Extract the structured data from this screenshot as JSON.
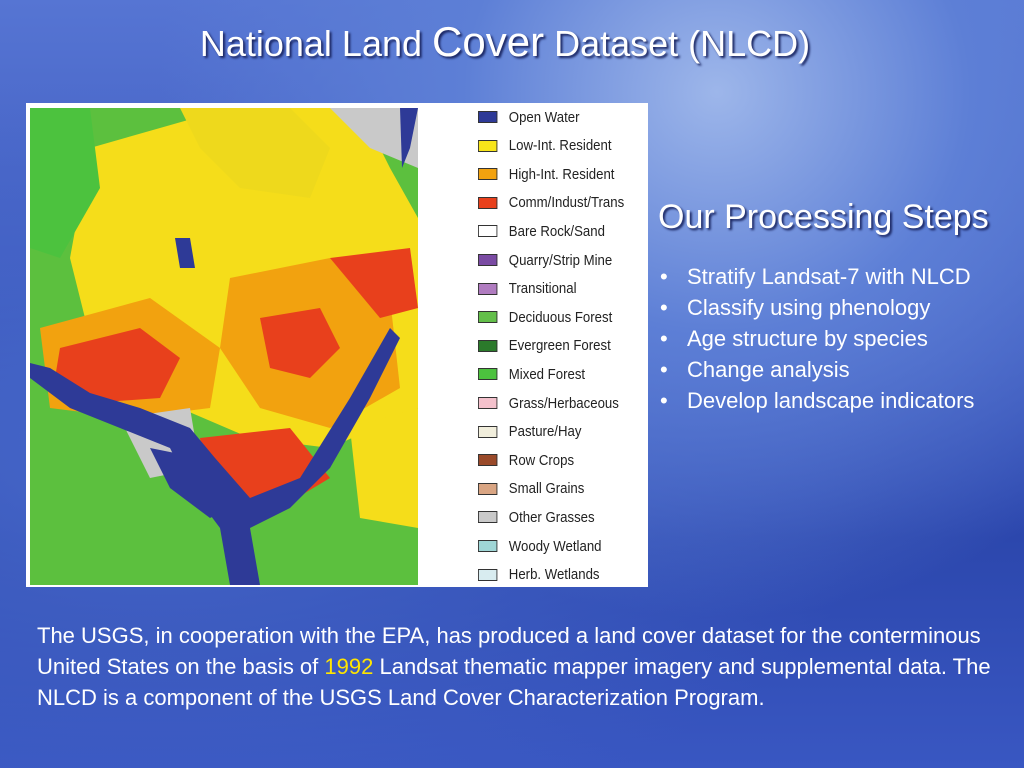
{
  "header": {
    "title_before": "National Land",
    "title_emphasis": "Cover",
    "title_after": "Dataset (NLCD)"
  },
  "legend": {
    "items": [
      {
        "label": "Open Water",
        "color": "#2e3a97"
      },
      {
        "label": "Low-Int. Resident",
        "color": "#f7e51a"
      },
      {
        "label": "High-Int. Resident",
        "color": "#f2a20f"
      },
      {
        "label": "Comm/Indust/Trans",
        "color": "#e8401c"
      },
      {
        "label": "Bare Rock/Sand",
        "color": "#ffffff"
      },
      {
        "label": "Quarry/Strip Mine",
        "color": "#7a4ba3"
      },
      {
        "label": "Transitional",
        "color": "#b07cc0"
      },
      {
        "label": "Deciduous Forest",
        "color": "#63bf4a"
      },
      {
        "label": "Evergreen Forest",
        "color": "#2b7a2b"
      },
      {
        "label": "Mixed Forest",
        "color": "#4cc23e"
      },
      {
        "label": "Grass/Herbaceous",
        "color": "#f4c1cc"
      },
      {
        "label": "Pasture/Hay",
        "color": "#f1eedc"
      },
      {
        "label": "Row Crops",
        "color": "#9a4a2a"
      },
      {
        "label": "Small Grains",
        "color": "#d9a583"
      },
      {
        "label": "Other Grasses",
        "color": "#c9c9c9"
      },
      {
        "label": "Woody Wetland",
        "color": "#9fd6d6"
      },
      {
        "label": "Herb. Wetlands",
        "color": "#d8ecf0"
      }
    ]
  },
  "steps": {
    "heading": "Our Processing Steps",
    "bullets": [
      "Stratify Landsat-7 with NLCD",
      "Classify using phenology",
      "Age structure by species",
      "Change analysis",
      "Develop landscape indicators"
    ]
  },
  "paragraph": {
    "text_before": "The USGS, in cooperation with the EPA, has produced a land cover dataset for the conterminous United States on the basis of",
    "year": "1992",
    "text_after": "Landsat thematic mapper imagery and supplemental data. The NLCD is a component of the USGS Land Cover Characterization Program."
  }
}
